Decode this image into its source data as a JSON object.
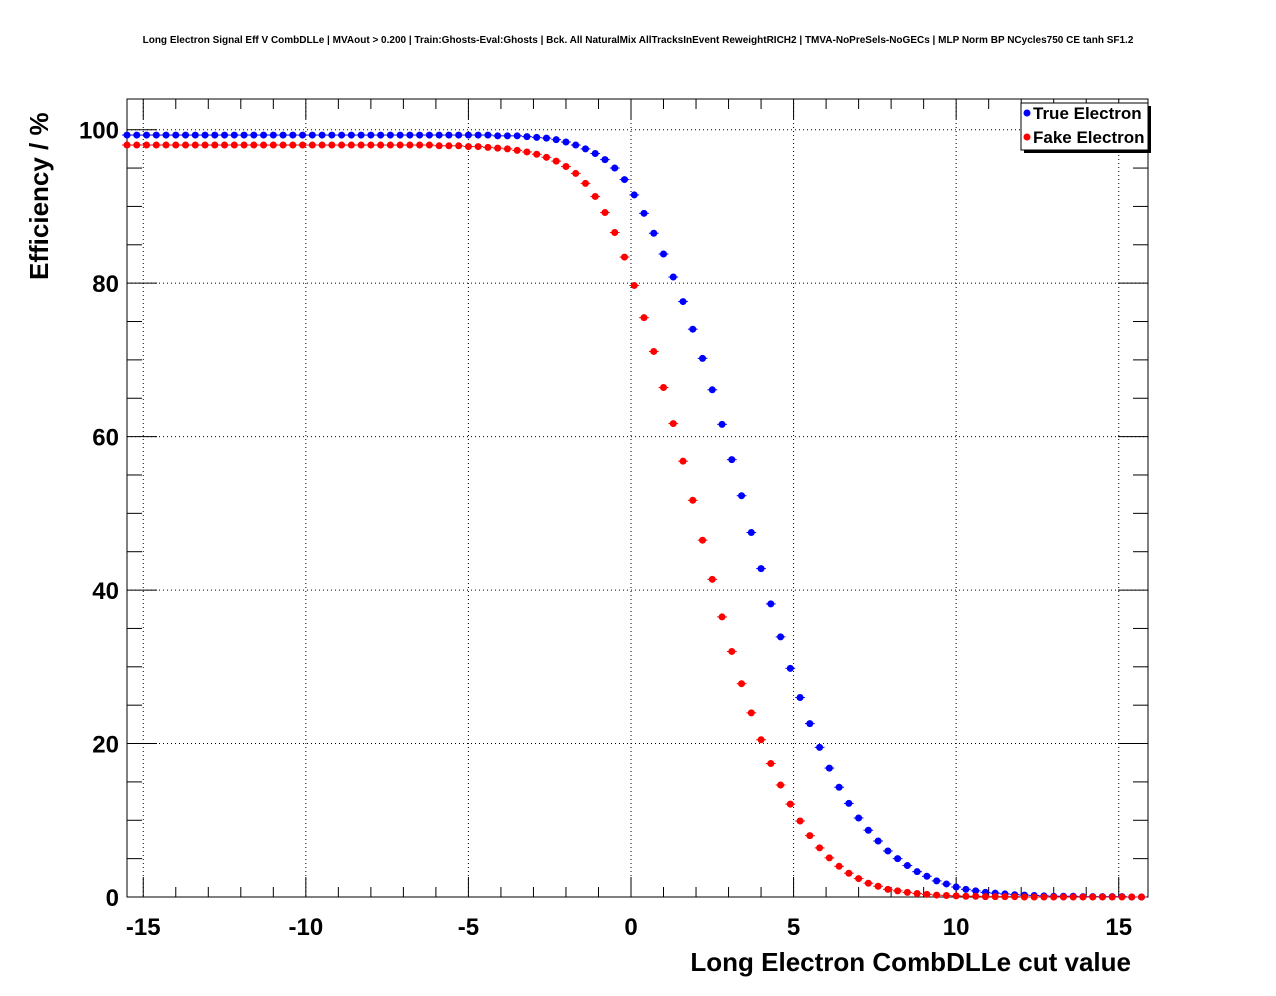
{
  "chart_data": {
    "type": "scatter",
    "title": "Long Electron Signal Eff V CombDLLe | MVAout > 0.200 | Train:Ghosts-Eval:Ghosts | Bck. All NaturalMix AllTracksInEvent ReweightRICH2 | TMVA-NoPreSels-NoGECs | MLP Norm BP NCycles750 CE tanh SF1.2",
    "xlabel": "Long Electron CombDLLe cut value",
    "ylabel": "Efficiency / %",
    "xlim": [
      -15.5,
      15.9
    ],
    "ylim": [
      0,
      104
    ],
    "x_ticks": [
      -15,
      -10,
      -5,
      0,
      5,
      10,
      15
    ],
    "x_tick_labels": [
      "-15",
      "-10",
      "-5",
      "0",
      "5",
      "10",
      "15"
    ],
    "y_ticks": [
      0,
      20,
      40,
      60,
      80,
      100
    ],
    "y_tick_labels": [
      "0",
      "20",
      "40",
      "60",
      "80",
      "100"
    ],
    "grid": true,
    "legend_position": "top-right",
    "x": [
      -15.5,
      -15.2,
      -14.9,
      -14.6,
      -14.3,
      -14.0,
      -13.7,
      -13.4,
      -13.1,
      -12.8,
      -12.5,
      -12.2,
      -11.9,
      -11.6,
      -11.3,
      -11.0,
      -10.7,
      -10.4,
      -10.1,
      -9.8,
      -9.5,
      -9.2,
      -8.9,
      -8.6,
      -8.3,
      -8.0,
      -7.7,
      -7.4,
      -7.1,
      -6.8,
      -6.5,
      -6.2,
      -5.9,
      -5.6,
      -5.3,
      -5.0,
      -4.7,
      -4.4,
      -4.1,
      -3.8,
      -3.5,
      -3.2,
      -2.9,
      -2.6,
      -2.3,
      -2.0,
      -1.7,
      -1.4,
      -1.1,
      -0.8,
      -0.5,
      -0.2,
      0.1,
      0.4,
      0.7,
      1.0,
      1.3,
      1.6,
      1.9,
      2.2,
      2.5,
      2.8,
      3.1,
      3.4,
      3.7,
      4.0,
      4.3,
      4.6,
      4.9,
      5.2,
      5.5,
      5.8,
      6.1,
      6.4,
      6.7,
      7.0,
      7.3,
      7.6,
      7.9,
      8.2,
      8.5,
      8.8,
      9.1,
      9.4,
      9.7,
      10.0,
      10.3,
      10.6,
      10.9,
      11.2,
      11.5,
      11.8,
      12.1,
      12.4,
      12.7,
      13.0,
      13.3,
      13.6,
      13.9,
      14.2,
      14.5,
      14.8,
      15.1,
      15.4,
      15.7
    ],
    "series": [
      {
        "name": "True Electron",
        "color": "#0000ff",
        "values": [
          99.3,
          99.3,
          99.3,
          99.3,
          99.3,
          99.3,
          99.3,
          99.3,
          99.3,
          99.3,
          99.3,
          99.3,
          99.3,
          99.3,
          99.3,
          99.3,
          99.3,
          99.3,
          99.3,
          99.3,
          99.3,
          99.3,
          99.3,
          99.3,
          99.3,
          99.3,
          99.3,
          99.3,
          99.3,
          99.3,
          99.3,
          99.3,
          99.3,
          99.3,
          99.3,
          99.3,
          99.3,
          99.3,
          99.2,
          99.2,
          99.2,
          99.1,
          99.0,
          98.9,
          98.7,
          98.4,
          98.0,
          97.5,
          96.9,
          96.1,
          95.0,
          93.5,
          91.5,
          89.1,
          86.5,
          83.8,
          80.8,
          77.6,
          74.0,
          70.2,
          66.1,
          61.6,
          57.0,
          52.3,
          47.5,
          42.8,
          38.2,
          33.9,
          29.8,
          26.0,
          22.6,
          19.5,
          16.8,
          14.3,
          12.2,
          10.3,
          8.7,
          7.3,
          6.0,
          5.0,
          4.1,
          3.3,
          2.7,
          2.1,
          1.7,
          1.3,
          1.0,
          0.8,
          0.6,
          0.5,
          0.4,
          0.3,
          0.25,
          0.2,
          0.15,
          0.1,
          0.1,
          0.1,
          0.05,
          0.05,
          0.05,
          0.05,
          0.05,
          0.0,
          0.0
        ]
      },
      {
        "name": "Fake Electron",
        "color": "#ff0000",
        "values": [
          98.0,
          98.0,
          98.0,
          98.0,
          98.0,
          98.0,
          98.0,
          98.0,
          98.0,
          98.0,
          98.0,
          98.0,
          98.0,
          98.0,
          98.0,
          98.0,
          98.0,
          98.0,
          98.0,
          98.0,
          98.0,
          98.0,
          98.0,
          98.0,
          98.0,
          98.0,
          98.0,
          98.0,
          98.0,
          98.0,
          98.0,
          98.0,
          97.9,
          97.9,
          97.9,
          97.8,
          97.8,
          97.7,
          97.6,
          97.5,
          97.3,
          97.1,
          96.8,
          96.4,
          95.9,
          95.2,
          94.3,
          93.0,
          91.3,
          89.2,
          86.6,
          83.4,
          79.7,
          75.5,
          71.1,
          66.4,
          61.7,
          56.8,
          51.7,
          46.5,
          41.4,
          36.5,
          32.0,
          27.8,
          24.0,
          20.5,
          17.4,
          14.6,
          12.1,
          9.9,
          8.0,
          6.4,
          5.1,
          4.0,
          3.1,
          2.4,
          1.8,
          1.4,
          1.0,
          0.8,
          0.6,
          0.45,
          0.35,
          0.25,
          0.2,
          0.15,
          0.1,
          0.1,
          0.05,
          0.05,
          0.05,
          0.05,
          0.0,
          0.0,
          0.0,
          0.0,
          0.0,
          0.0,
          0.0,
          0.0,
          0.0,
          0.0,
          0.0,
          0.0,
          0.0
        ]
      }
    ]
  }
}
